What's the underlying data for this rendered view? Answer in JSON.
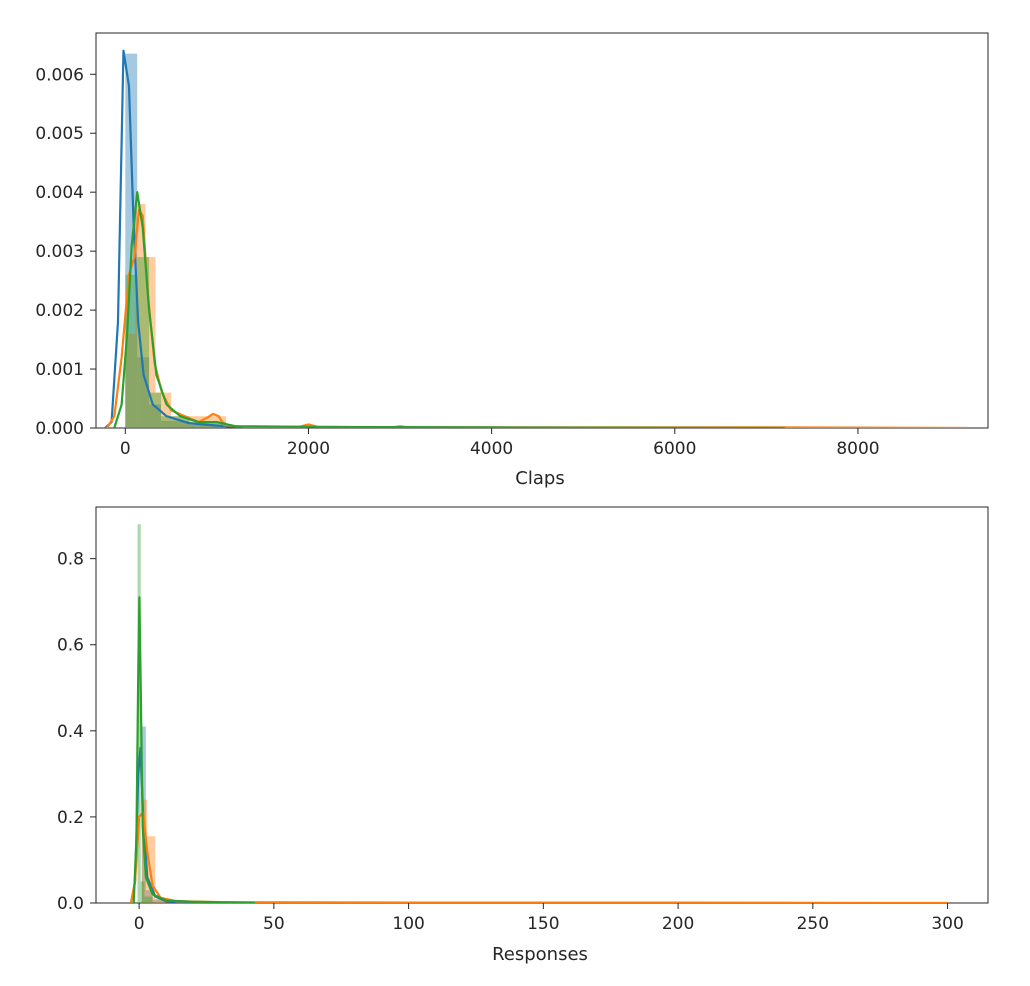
{
  "chart_data": [
    {
      "type": "area",
      "xlabel": "Claps",
      "ylabel": "",
      "xlim": [
        -320,
        9420
      ],
      "ylim": [
        0,
        0.0067
      ],
      "xticks": [
        0,
        2000,
        4000,
        6000,
        8000
      ],
      "xtick_labels": [
        "0",
        "2000",
        "4000",
        "6000",
        "8000"
      ],
      "yticks": [
        0,
        0.001,
        0.002,
        0.003,
        0.004,
        0.005,
        0.006
      ],
      "ytick_labels": [
        "0.000",
        "0.001",
        "0.002",
        "0.003",
        "0.004",
        "0.005",
        "0.006"
      ],
      "grid": false,
      "legend": "none",
      "series": [
        {
          "color": "#1f77b4",
          "histogram": [
            {
              "x0": 0,
              "x1": 130,
              "density": 0.00635
            },
            {
              "x0": 130,
              "x1": 260,
              "density": 0.0012
            },
            {
              "x0": 260,
              "x1": 390,
              "density": 0.0004
            },
            {
              "x0": 390,
              "x1": 700,
              "density": 0.00012
            },
            {
              "x0": 700,
              "x1": 1100,
              "density": 5e-05
            }
          ],
          "kde": [
            [
              -220,
              0
            ],
            [
              -150,
              0.0001
            ],
            [
              -80,
              0.0018
            ],
            [
              -20,
              0.0064
            ],
            [
              40,
              0.0058
            ],
            [
              90,
              0.0035
            ],
            [
              140,
              0.0018
            ],
            [
              200,
              0.0009
            ],
            [
              300,
              0.0004
            ],
            [
              450,
              0.0002
            ],
            [
              700,
              8e-05
            ],
            [
              1000,
              4e-05
            ],
            [
              1300,
              1e-05
            ],
            [
              2000,
              0
            ]
          ]
        },
        {
          "color": "#ff7f0e",
          "histogram": [
            {
              "x0": 0,
              "x1": 110,
              "density": 0.0016
            },
            {
              "x0": 110,
              "x1": 220,
              "density": 0.0038
            },
            {
              "x0": 220,
              "x1": 330,
              "density": 0.0029
            },
            {
              "x0": 330,
              "x1": 500,
              "density": 0.0006
            },
            {
              "x0": 500,
              "x1": 800,
              "density": 0.0002
            },
            {
              "x0": 800,
              "x1": 1100,
              "density": 0.0002
            }
          ],
          "kde": [
            [
              -200,
              0
            ],
            [
              -120,
              0.0002
            ],
            [
              -40,
              0.0012
            ],
            [
              40,
              0.0026
            ],
            [
              100,
              0.0029
            ],
            [
              150,
              0.0037
            ],
            [
              190,
              0.0036
            ],
            [
              250,
              0.0022
            ],
            [
              320,
              0.0011
            ],
            [
              400,
              0.0006
            ],
            [
              500,
              0.0003
            ],
            [
              650,
              0.0002
            ],
            [
              800,
              0.0001
            ],
            [
              900,
              0.00018
            ],
            [
              960,
              0.00024
            ],
            [
              1020,
              0.0002
            ],
            [
              1080,
              5e-05
            ],
            [
              1300,
              2e-05
            ],
            [
              1900,
              2e-05
            ],
            [
              2000,
              6e-05
            ],
            [
              2100,
              2e-05
            ],
            [
              2900,
              1e-05
            ],
            [
              3000,
              3e-05
            ],
            [
              3100,
              1e-05
            ],
            [
              5000,
              1e-05
            ],
            [
              7000,
              1e-05
            ],
            [
              9200,
              0
            ]
          ]
        },
        {
          "color": "#2ca02c",
          "histogram": [
            {
              "x0": 0,
              "x1": 130,
              "density": 0.0026
            },
            {
              "x0": 130,
              "x1": 260,
              "density": 0.0029
            },
            {
              "x0": 260,
              "x1": 390,
              "density": 0.0006
            },
            {
              "x0": 390,
              "x1": 700,
              "density": 0.0002
            },
            {
              "x0": 700,
              "x1": 1100,
              "density": 0.0001
            }
          ],
          "kde": [
            [
              -120,
              0
            ],
            [
              -40,
              0.0004
            ],
            [
              20,
              0.0016
            ],
            [
              70,
              0.0031
            ],
            [
              130,
              0.004
            ],
            [
              190,
              0.0034
            ],
            [
              260,
              0.002
            ],
            [
              340,
              0.0009
            ],
            [
              450,
              0.0004
            ],
            [
              600,
              0.0002
            ],
            [
              800,
              0.0001
            ],
            [
              1000,
              0.0001
            ],
            [
              1200,
              3e-05
            ],
            [
              2000,
              2e-05
            ],
            [
              4000,
              1e-05
            ],
            [
              7200,
              0
            ]
          ]
        }
      ]
    },
    {
      "type": "area",
      "xlabel": "Responses",
      "ylabel": "",
      "xlim": [
        -16,
        315
      ],
      "ylim": [
        0,
        0.92
      ],
      "xticks": [
        0,
        50,
        100,
        150,
        200,
        250,
        300
      ],
      "xtick_labels": [
        "0",
        "50",
        "100",
        "150",
        "200",
        "250",
        "300"
      ],
      "yticks": [
        0,
        0.2,
        0.4,
        0.6,
        0.8
      ],
      "ytick_labels": [
        "0.0",
        "0.2",
        "0.4",
        "0.6",
        "0.8"
      ],
      "grid": false,
      "legend": "none",
      "series": [
        {
          "color": "#1f77b4",
          "histogram": [
            {
              "x0": 1,
              "x1": 2.5,
              "density": 0.41
            },
            {
              "x0": 2.5,
              "x1": 5,
              "density": 0.03
            },
            {
              "x0": 5,
              "x1": 10,
              "density": 0.008
            }
          ],
          "kde": [
            [
              -3,
              0
            ],
            [
              -1.5,
              0.05
            ],
            [
              -0.3,
              0.3
            ],
            [
              0.5,
              0.36
            ],
            [
              1.5,
              0.2
            ],
            [
              3,
              0.06
            ],
            [
              6,
              0.015
            ],
            [
              10,
              0.004
            ],
            [
              20,
              0
            ]
          ]
        },
        {
          "color": "#ff7f0e",
          "histogram": [
            {
              "x0": 1,
              "x1": 3,
              "density": 0.24
            },
            {
              "x0": 3,
              "x1": 6,
              "density": 0.155
            },
            {
              "x0": 6,
              "x1": 12,
              "density": 0.01
            }
          ],
          "kde": [
            [
              -3,
              0
            ],
            [
              -1.5,
              0.05
            ],
            [
              0,
              0.2
            ],
            [
              1.5,
              0.21
            ],
            [
              3,
              0.12
            ],
            [
              5,
              0.04
            ],
            [
              8,
              0.012
            ],
            [
              14,
              0.004
            ],
            [
              30,
              0.002
            ],
            [
              100,
              0.001
            ],
            [
              200,
              0.0008
            ],
            [
              300,
              0
            ]
          ]
        },
        {
          "color": "#2ca02c",
          "histogram": [
            {
              "x0": -0.6,
              "x1": 0.6,
              "density": 0.88
            },
            {
              "x0": 0.6,
              "x1": 2,
              "density": 0.05
            },
            {
              "x0": 2,
              "x1": 5,
              "density": 0.015
            }
          ],
          "kde": [
            [
              -2,
              0
            ],
            [
              -1,
              0.15
            ],
            [
              -0.3,
              0.55
            ],
            [
              0.1,
              0.71
            ],
            [
              0.6,
              0.5
            ],
            [
              1.3,
              0.18
            ],
            [
              2.5,
              0.06
            ],
            [
              5,
              0.02
            ],
            [
              10,
              0.006
            ],
            [
              20,
              0.003
            ],
            [
              43,
              0
            ]
          ]
        }
      ]
    }
  ]
}
